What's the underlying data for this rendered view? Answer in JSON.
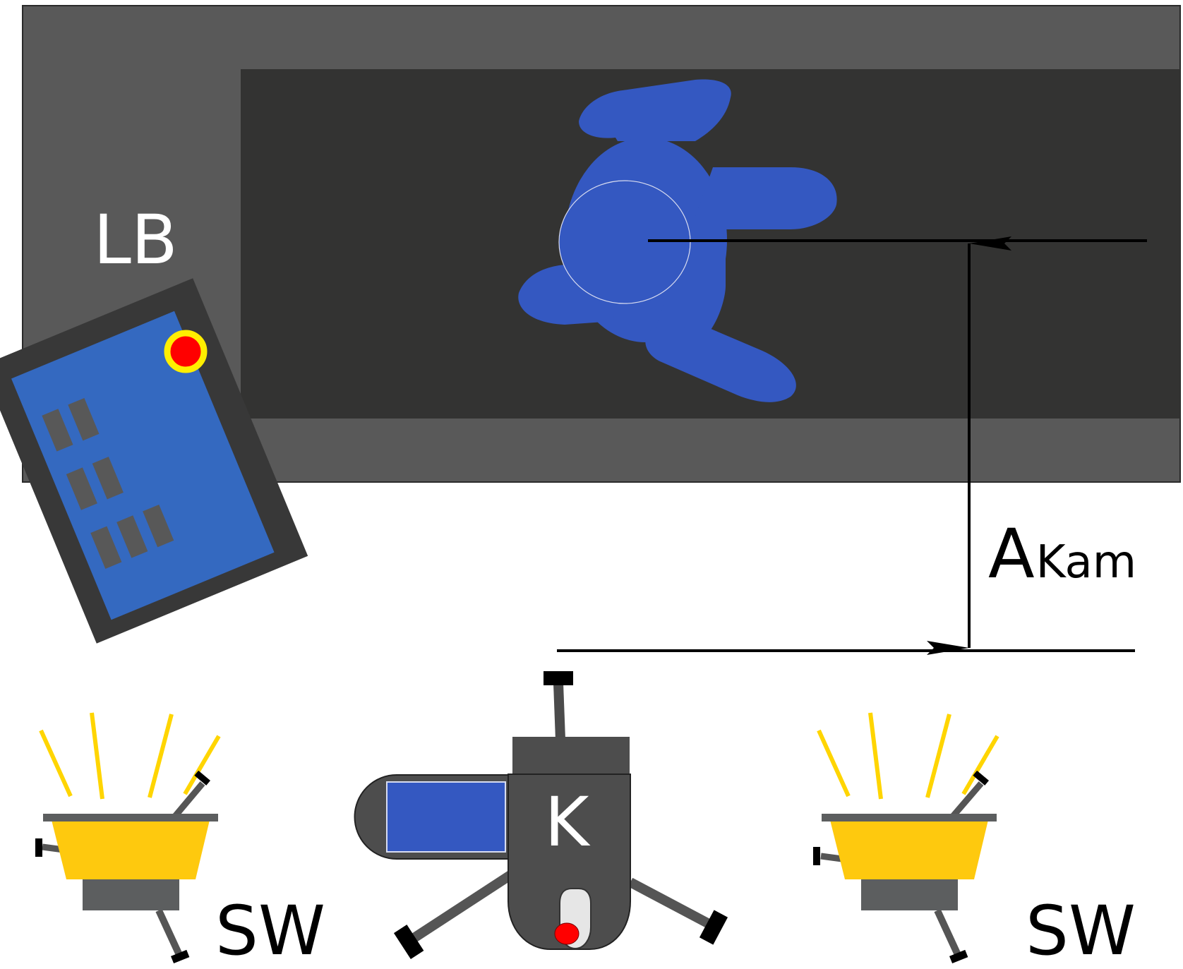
{
  "labels": {
    "light_box": "LB",
    "distance_main": "A",
    "distance_sub": "Kam",
    "camera": "K",
    "strobe_left": "SW",
    "strobe_right": "SW"
  },
  "colors": {
    "light_box_frame": "#595959",
    "light_box_inner": "#333332",
    "subject_blue": "#3458c1",
    "remote_body": "#383838",
    "remote_panel": "#3469c0",
    "remote_buttons": "#585858",
    "alert_red": "#ff0000",
    "alert_yellow": "#ffee00",
    "strobe_yellow": "#fec90e",
    "strobe_rays": "#ffd500",
    "camera_body": "#4d4d4d",
    "camera_screen": "#3458c1",
    "legs": "#555555",
    "leg_caps": "#000000",
    "base_gray": "#5c5e5f"
  }
}
